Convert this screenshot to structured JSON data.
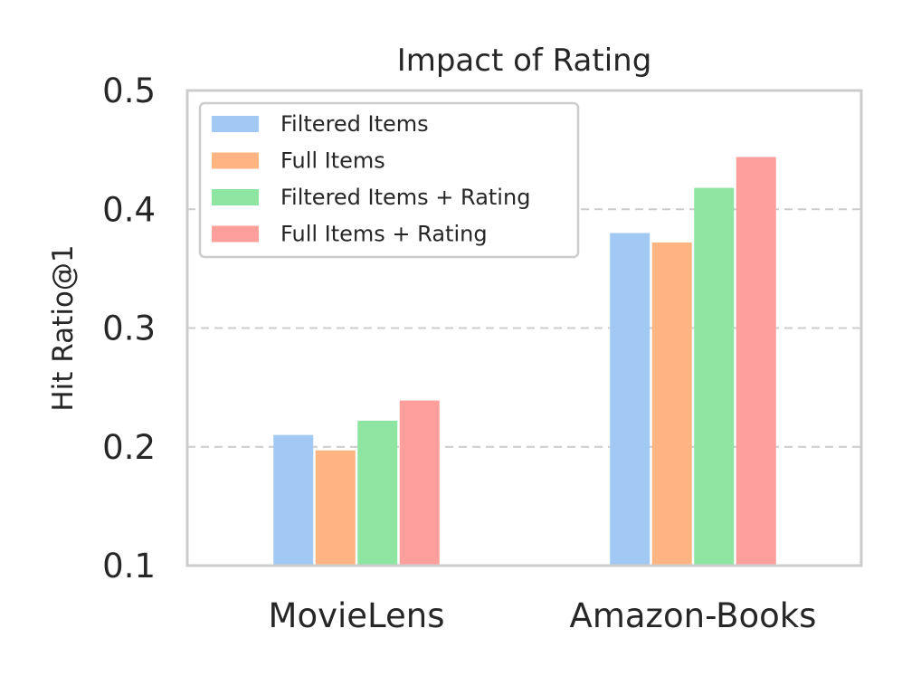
{
  "chart_data": {
    "type": "bar",
    "title": "Impact of Rating",
    "xlabel": "",
    "ylabel": "Hit Ratio@1",
    "categories": [
      "MovieLens",
      "Amazon-Books"
    ],
    "ylim": [
      0.1,
      0.5
    ],
    "yticks": [
      "0.1",
      "0.2",
      "0.3",
      "0.4",
      "0.5"
    ],
    "grid": "horizontal-dashed",
    "legend_position": "top-left",
    "series": [
      {
        "name": "Filtered Items",
        "color": "#a1c9f4",
        "values": [
          0.21,
          0.38
        ]
      },
      {
        "name": "Full Items",
        "color": "#ffb482",
        "values": [
          0.197,
          0.372
        ]
      },
      {
        "name": "Filtered Items + Rating",
        "color": "#8de5a1",
        "values": [
          0.222,
          0.418
        ]
      },
      {
        "name": "Full Items + Rating",
        "color": "#ff9f9b",
        "values": [
          0.239,
          0.444
        ]
      }
    ]
  }
}
